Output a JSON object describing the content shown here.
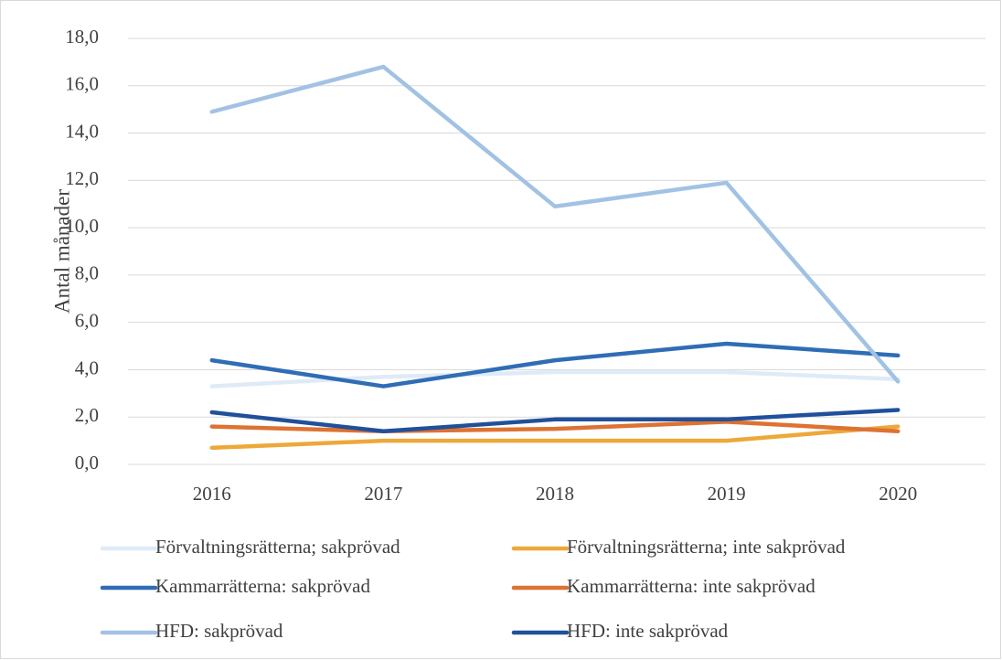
{
  "chart_data": {
    "type": "line",
    "y_label": "Antal månader",
    "categories": [
      "2016",
      "2017",
      "2018",
      "2019",
      "2020"
    ],
    "series": [
      {
        "name": "Förvaltningsrätterna; sakprövad",
        "color": "#deebf7",
        "values": [
          3.3,
          3.7,
          3.9,
          3.9,
          3.6
        ]
      },
      {
        "name": "Förvaltningsrätterna; inte sakprövad",
        "color": "#eda83a",
        "values": [
          0.7,
          1.0,
          1.0,
          1.0,
          1.6
        ]
      },
      {
        "name": "Kammarrätterna: sakprövad",
        "color": "#2f6db5",
        "values": [
          4.4,
          3.3,
          4.4,
          5.1,
          4.6
        ]
      },
      {
        "name": "Kammarrätterna: inte sakprövad",
        "color": "#dd7232",
        "values": [
          1.6,
          1.4,
          1.5,
          1.8,
          1.4
        ]
      },
      {
        "name": "HFD: sakprövad",
        "color": "#a2c2e4",
        "values": [
          14.9,
          16.8,
          10.9,
          11.9,
          3.5
        ]
      },
      {
        "name": "HFD: inte sakprövad",
        "color": "#21509a",
        "values": [
          2.2,
          1.4,
          1.9,
          1.9,
          2.3
        ]
      }
    ],
    "ylim": [
      0,
      18
    ],
    "yticks": [
      {
        "value": 0,
        "label": "0,0"
      },
      {
        "value": 2,
        "label": "2,0"
      },
      {
        "value": 4,
        "label": "4,0"
      },
      {
        "value": 6,
        "label": "6,0"
      },
      {
        "value": 8,
        "label": "8,0"
      },
      {
        "value": 10,
        "label": "10,0"
      },
      {
        "value": 12,
        "label": "12,0"
      },
      {
        "value": 14,
        "label": "14,0"
      },
      {
        "value": 16,
        "label": "16,0"
      },
      {
        "value": 18,
        "label": "18,0"
      }
    ],
    "grid": true,
    "legend": "bottom"
  }
}
